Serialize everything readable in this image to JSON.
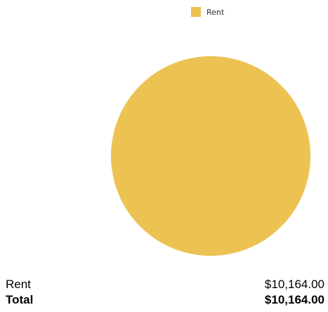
{
  "chart_data": {
    "type": "pie",
    "categories": [
      "Rent"
    ],
    "values": [
      10164.0
    ],
    "legend": {
      "placement": "top-right",
      "entries": [
        "Rent"
      ]
    },
    "colors": [
      "#ECC253"
    ]
  },
  "summary": {
    "rows": [
      {
        "label": "Rent",
        "value": "$10,164.00"
      }
    ],
    "total": {
      "label": "Total",
      "value": "$10,164.00"
    }
  }
}
